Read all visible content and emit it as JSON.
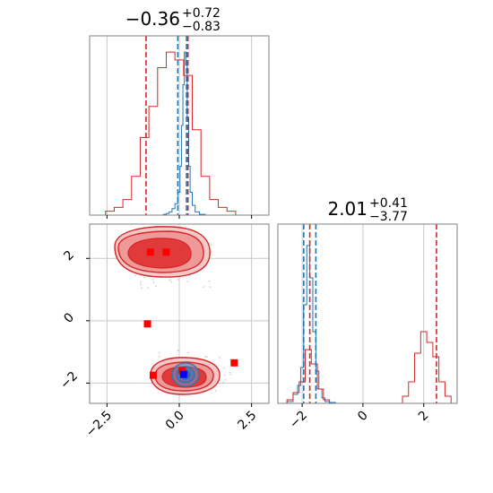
{
  "chart_data": [
    {
      "type": "histogram",
      "panel": "x-marginal",
      "title_value": "−0.36",
      "title_upper": "+0.72",
      "title_lower": "−0.83",
      "xlim": [
        -3.1,
        3.1
      ],
      "xticks": [
        -2.5,
        0.0,
        2.5
      ],
      "grid": true,
      "vlines": [
        {
          "x": -0.05,
          "color": "#1f77b4",
          "style": "dashed"
        },
        {
          "x": 0.25,
          "color": "#1f77b4",
          "style": "dashed"
        },
        {
          "x": -1.15,
          "color": "#d62728",
          "style": "dashed"
        },
        {
          "x": 0.3,
          "color": "#d62728",
          "style": "dashed"
        }
      ],
      "series": [
        {
          "color": "#1f77b4",
          "x": [
            -1.0,
            -0.8,
            -0.6,
            -0.5,
            -0.4,
            -0.3,
            -0.2,
            -0.1,
            0.0,
            0.05,
            0.1,
            0.15,
            0.2,
            0.25,
            0.3,
            0.35,
            0.4,
            0.5,
            0.6,
            0.8,
            1.0
          ],
          "counts": [
            0,
            0,
            0,
            0.5,
            1,
            2,
            4,
            7,
            14,
            30,
            55,
            80,
            100,
            92,
            60,
            30,
            14,
            6,
            2,
            0.5,
            0
          ]
        },
        {
          "color": "#d62728",
          "x": [
            -3.0,
            -2.7,
            -2.4,
            -2.1,
            -1.8,
            -1.5,
            -1.2,
            -0.9,
            -0.6,
            -0.3,
            0.0,
            0.3,
            0.6,
            0.9,
            1.2,
            1.5,
            1.8,
            2.1,
            2.4,
            2.7,
            3.0
          ],
          "counts": [
            0,
            0,
            0.5,
            1,
            2,
            5,
            10,
            14,
            19,
            21,
            20,
            18,
            11,
            5,
            2,
            1,
            0.5,
            0,
            0,
            0,
            0
          ]
        }
      ]
    },
    {
      "type": "histogram",
      "panel": "y-marginal",
      "title_value": "2.01",
      "title_upper": "+0.41",
      "title_lower": "−3.77",
      "xlim": [
        -2.8,
        3.1
      ],
      "xticks": [
        -2,
        0,
        2
      ],
      "grid": true,
      "vlines": [
        {
          "x": -1.95,
          "color": "#1f77b4",
          "style": "dashed"
        },
        {
          "x": -1.55,
          "color": "#1f77b4",
          "style": "dashed"
        },
        {
          "x": -1.75,
          "color": "#d62728",
          "style": "dashed"
        },
        {
          "x": 2.42,
          "color": "#d62728",
          "style": "dashed"
        }
      ],
      "series": [
        {
          "color": "#1f77b4",
          "x": [
            -2.6,
            -2.4,
            -2.2,
            -2.1,
            -2.0,
            -1.9,
            -1.8,
            -1.7,
            -1.6,
            -1.5,
            -1.4,
            -1.3,
            -1.2,
            -1.0,
            -0.8
          ],
          "counts": [
            0,
            1,
            5,
            10,
            20,
            55,
            88,
            70,
            40,
            18,
            8,
            3,
            1,
            0.5,
            0
          ]
        },
        {
          "color": "#d62728",
          "x": [
            -2.6,
            -2.4,
            -2.2,
            -2.0,
            -1.8,
            -1.6,
            -1.4,
            -1.2,
            -1.0,
            1.2,
            1.4,
            1.6,
            1.8,
            2.0,
            2.2,
            2.4,
            2.6,
            2.8,
            3.0
          ],
          "counts": [
            0,
            2,
            6,
            12,
            30,
            22,
            8,
            2,
            0,
            0,
            4,
            12,
            28,
            40,
            34,
            26,
            12,
            4,
            0
          ]
        }
      ]
    },
    {
      "type": "scatter-contour",
      "panel": "joint",
      "xlim": [
        -3.1,
        3.1
      ],
      "ylim": [
        -2.65,
        3.1
      ],
      "xticks": [
        -2.5,
        0.0,
        2.5
      ],
      "yticks": [
        -2,
        0,
        2
      ],
      "grid": true,
      "red_markers": [
        {
          "x": -1.0,
          "y": 2.2
        },
        {
          "x": -0.45,
          "y": 2.2
        },
        {
          "x": -1.1,
          "y": -0.1
        },
        {
          "x": -0.9,
          "y": -1.75
        },
        {
          "x": 1.9,
          "y": -1.35
        },
        {
          "x": 0.1,
          "y": -1.6
        }
      ],
      "blue_markers": [
        {
          "x": 0.15,
          "y": -1.72
        }
      ]
    }
  ]
}
